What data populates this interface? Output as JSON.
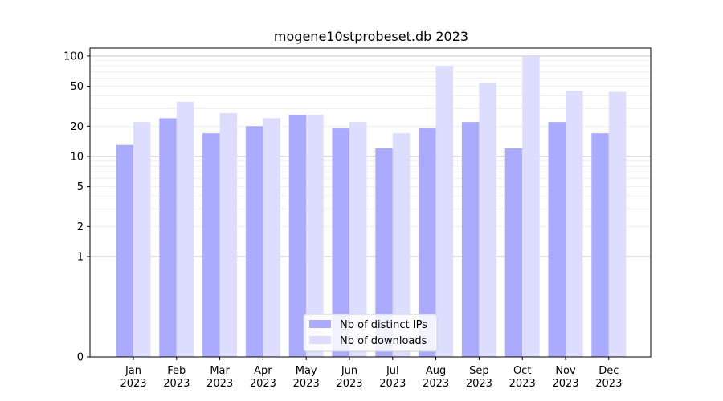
{
  "chart_data": {
    "type": "bar",
    "title": "mogene10stprobeset.db 2023",
    "xlabel": "",
    "ylabel": "",
    "yscale": "symlog",
    "ylim": [
      0,
      120
    ],
    "yticks": [
      0,
      1,
      2,
      5,
      10,
      20,
      50,
      100
    ],
    "grid": true,
    "legend_position": "bottom-center",
    "categories": [
      "Jan\n2023",
      "Feb\n2023",
      "Mar\n2023",
      "Apr\n2023",
      "May\n2023",
      "Jun\n2023",
      "Jul\n2023",
      "Aug\n2023",
      "Sep\n2023",
      "Oct\n2023",
      "Nov\n2023",
      "Dec\n2023"
    ],
    "series": [
      {
        "name": "Nb of distinct IPs",
        "color": "#aaaaff",
        "values": [
          13,
          24,
          17,
          20,
          26,
          19,
          12,
          19,
          22,
          12,
          22,
          17
        ]
      },
      {
        "name": "Nb of downloads",
        "color": "#ddddff",
        "values": [
          22,
          35,
          27,
          24,
          26,
          22,
          17,
          80,
          54,
          100,
          45,
          44
        ]
      }
    ]
  }
}
